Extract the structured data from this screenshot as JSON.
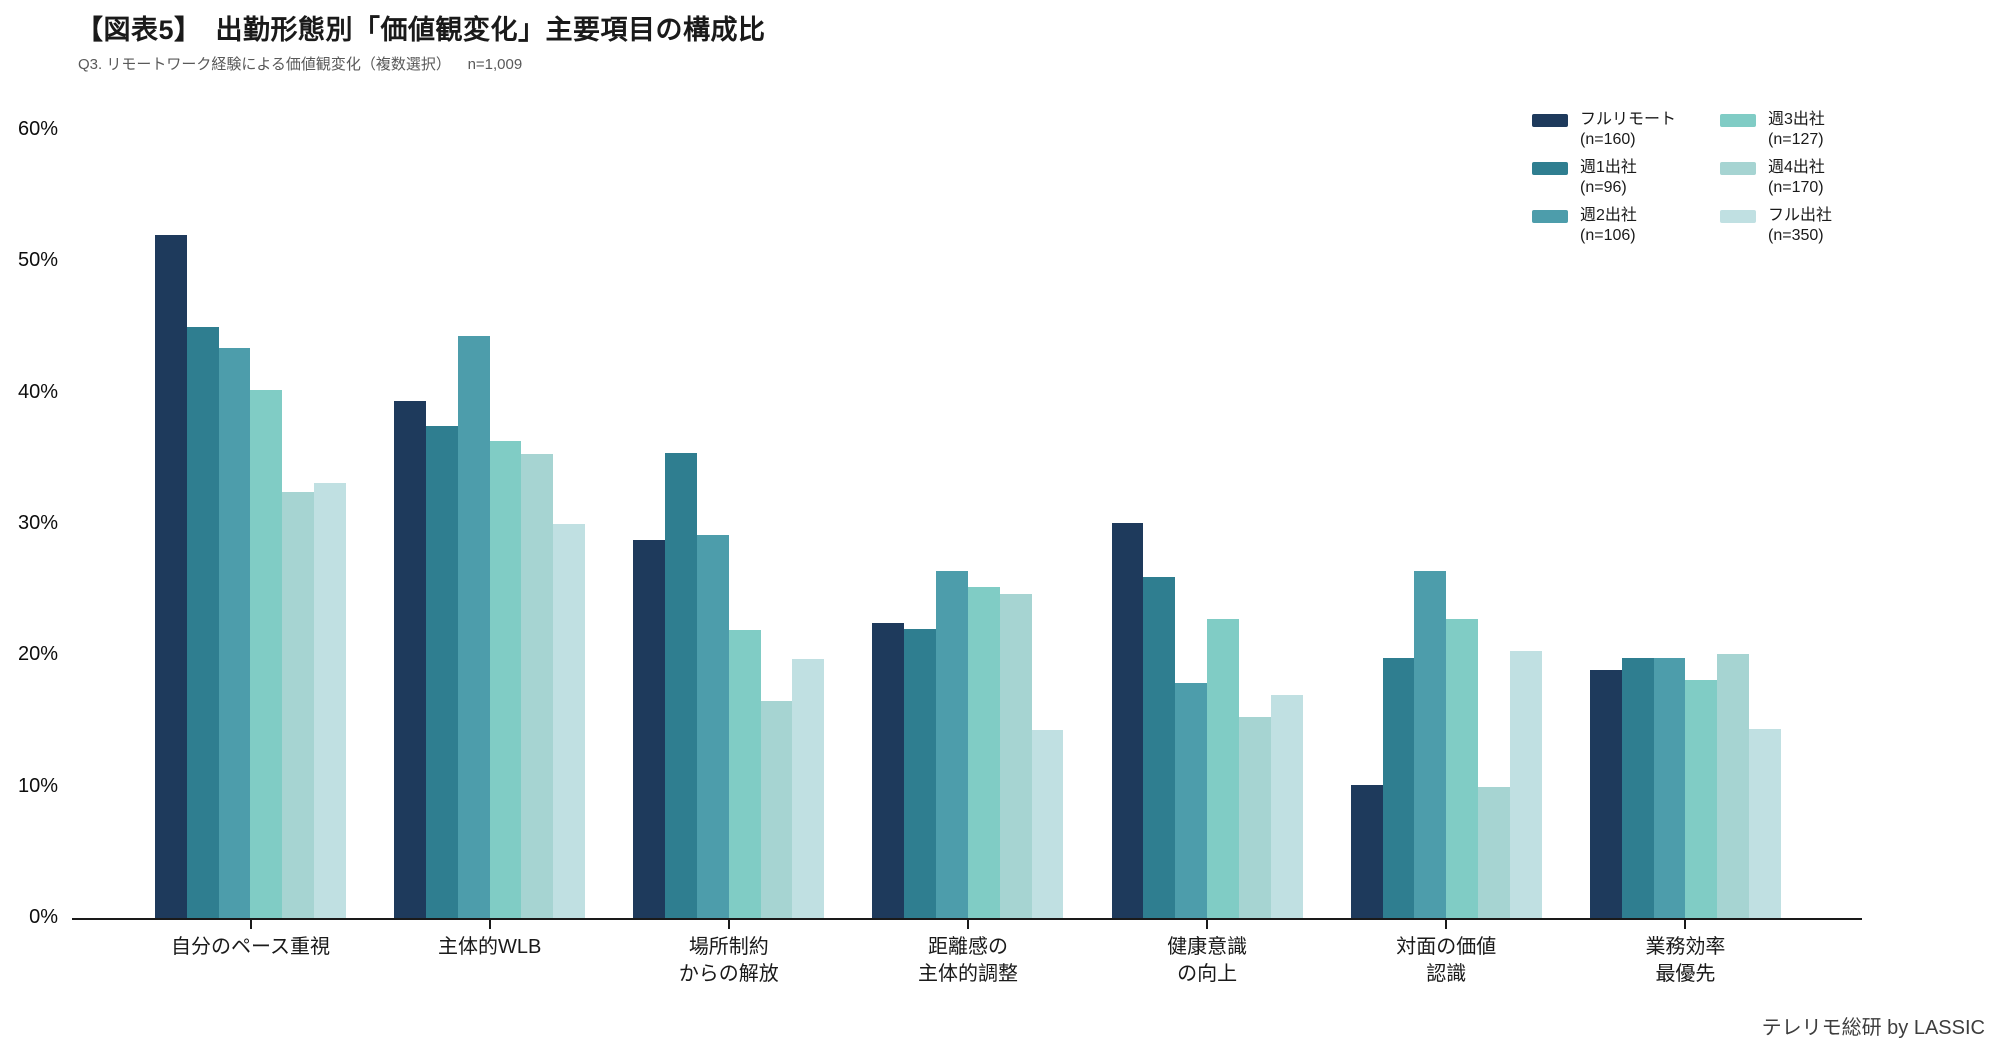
{
  "header": {
    "title": "【図表5】　出勤形態別「価値観変化」主要項目の構成比",
    "subtitle": "Q3. リモートワーク経験による価値観変化（複数選択）    n=1,009"
  },
  "footer": {
    "credit": "テレリモ総研 by LASSIC"
  },
  "colors": {
    "axis": "#1a1a1a",
    "title_text": "#1a1a1a",
    "subtitle_text": "#595959"
  },
  "chart_data": {
    "type": "bar",
    "title": "【図表5】　出勤形態別「価値観変化」主要項目の構成比",
    "subtitle": "Q3. リモートワーク経験による価値観変化（複数選択）　n=1,009",
    "categories": [
      "自分のペース重視",
      "主体的WLB",
      "場所制約\nからの解放",
      "距離感の\n主体的調整",
      "健康意識\nの向上",
      "対面の価値\n認識",
      "業務効率\n最優先"
    ],
    "series": [
      {
        "name": "フルリモート",
        "n": "(n=160)",
        "color": "#1e3a5c",
        "values": [
          52.0,
          39.4,
          28.8,
          22.5,
          30.1,
          10.1,
          18.9
        ]
      },
      {
        "name": "週1出社",
        "n": "(n=96)",
        "color": "#2f7e90",
        "values": [
          45.0,
          37.5,
          35.4,
          22.0,
          26.0,
          19.8,
          19.8
        ]
      },
      {
        "name": "週2出社",
        "n": "(n=106)",
        "color": "#4d9dab",
        "values": [
          43.4,
          44.3,
          29.2,
          26.4,
          17.9,
          26.4,
          19.8
        ]
      },
      {
        "name": "週3出社",
        "n": "(n=127)",
        "color": "#80ccc5",
        "values": [
          40.2,
          36.3,
          21.9,
          25.2,
          22.8,
          22.8,
          18.1
        ]
      },
      {
        "name": "週4出社",
        "n": "(n=170)",
        "color": "#a6d4d2",
        "values": [
          32.4,
          35.3,
          16.5,
          24.7,
          15.3,
          10.0,
          20.1
        ]
      },
      {
        "name": "フル出社",
        "n": "(n=350)",
        "color": "#c0e0e2",
        "values": [
          33.1,
          30.0,
          19.7,
          14.3,
          17.0,
          20.3,
          14.4
        ]
      }
    ],
    "yticks": [
      "0%",
      "10%",
      "20%",
      "30%",
      "40%",
      "50%",
      "60%"
    ],
    "ylim": [
      0,
      60
    ],
    "grid": false,
    "legend_position": "top-right",
    "xlabel": "",
    "ylabel": ""
  }
}
